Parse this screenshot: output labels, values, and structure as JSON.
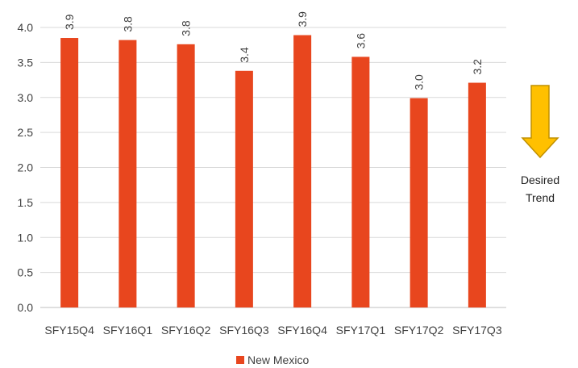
{
  "chart_data": {
    "type": "bar",
    "categories": [
      "SFY15Q4",
      "SFY16Q1",
      "SFY16Q2",
      "SFY16Q3",
      "SFY16Q4",
      "SFY17Q1",
      "SFY17Q2",
      "SFY17Q3"
    ],
    "series": [
      {
        "name": "New Mexico",
        "values": [
          3.85,
          3.82,
          3.76,
          3.38,
          3.89,
          3.58,
          2.99,
          3.21
        ],
        "labels": [
          "3.9",
          "3.8",
          "3.8",
          "3.4",
          "3.9",
          "3.6",
          "3.0",
          "3.2"
        ],
        "color": "#E8461E"
      }
    ],
    "yticks": [
      "0.0",
      "0.5",
      "1.0",
      "1.5",
      "2.0",
      "2.5",
      "3.0",
      "3.5",
      "4.0"
    ],
    "ylim": [
      0,
      4
    ],
    "grid": true,
    "legend_position": "bottom",
    "title": "",
    "xlabel": "",
    "ylabel": ""
  },
  "annotation": {
    "line1": "Desired",
    "line2": "Trend",
    "icon": "down-arrow-icon",
    "arrow_color": "#FFC000",
    "arrow_stroke": "#C09000"
  },
  "colors": {
    "grid": "#D9D9D9",
    "axis": "#BFBFBF"
  }
}
